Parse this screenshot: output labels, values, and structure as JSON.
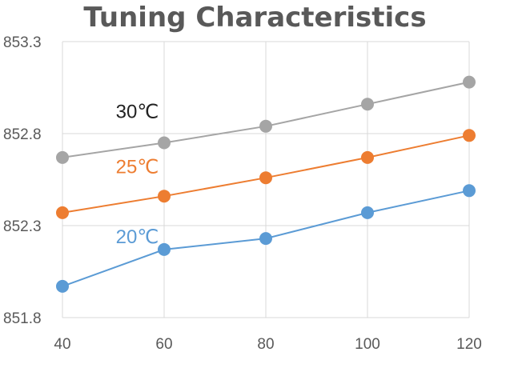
{
  "chart_data": {
    "type": "line",
    "title": "Tuning Characteristics",
    "xlabel": "",
    "ylabel": "",
    "x": [
      40,
      60,
      80,
      100,
      120
    ],
    "xlim": [
      40,
      120
    ],
    "ylim": [
      851.8,
      853.3
    ],
    "yticks": [
      851.8,
      852.3,
      852.8,
      853.3
    ],
    "yticklabels": [
      "851.8",
      "852.3",
      "852.8",
      "853.3"
    ],
    "xticklabels": [
      "40",
      "60",
      "80",
      "100",
      "120"
    ],
    "grid": true,
    "legend": "none",
    "series": [
      {
        "name": "30°C",
        "color": "#a5a5a5",
        "values": [
          852.67,
          852.75,
          852.84,
          852.96,
          853.08
        ]
      },
      {
        "name": "25°C",
        "color": "#ed7d31",
        "values": [
          852.37,
          852.46,
          852.56,
          852.67,
          852.79
        ]
      },
      {
        "name": "20°C",
        "color": "#5b9bd5",
        "values": [
          851.97,
          852.17,
          852.23,
          852.37,
          852.49
        ]
      }
    ],
    "annotations": [
      "30℃",
      "25℃",
      "20℃"
    ]
  }
}
